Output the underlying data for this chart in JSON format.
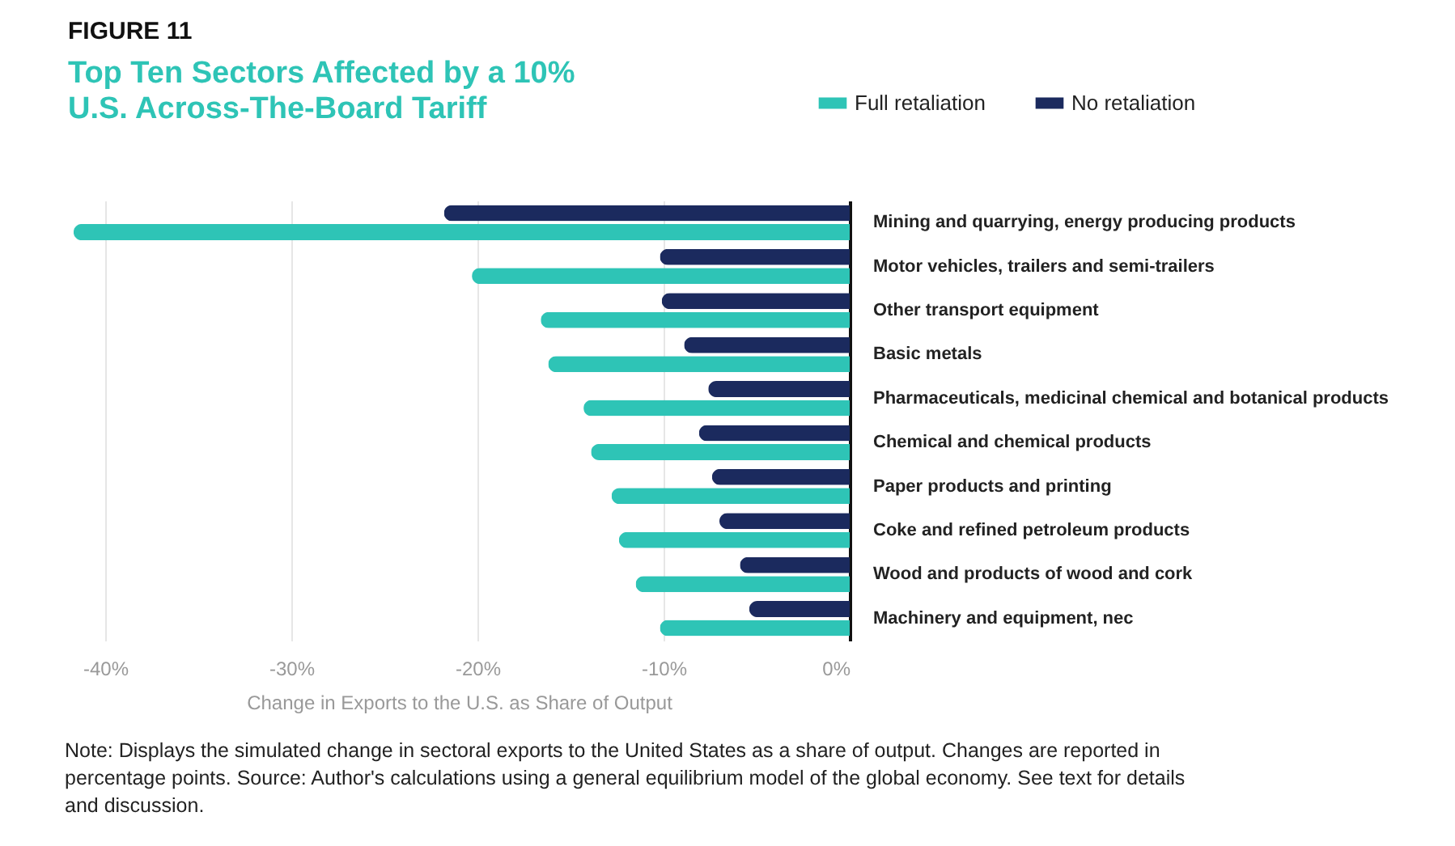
{
  "chart_data": {
    "type": "bar",
    "orientation": "horizontal",
    "title": "Top Ten Sectors Affected by a 10% U.S. Across-The-Board Tariff",
    "subtitle": "FIGURE 11",
    "xlabel": "Change in Exports to the U.S. as Share of Output",
    "categories": [
      "Mining and quarrying, energy producing products",
      "Motor vehicles, trailers and semi-trailers",
      "Other transport equipment",
      "Basic metals",
      "Pharmaceuticals, medicinal chemical and botanical products",
      "Chemical and chemical products",
      "Paper products and printing",
      "Coke and refined petroleum products",
      "Wood and products of wood and cork",
      "Machinery and equipment, nec"
    ],
    "series": [
      {
        "name": "Full retaliation",
        "color": "#2ec4b6",
        "values": [
          -41.7,
          -20.3,
          -16.6,
          -16.2,
          -14.3,
          -13.9,
          -12.8,
          -12.4,
          -11.5,
          -10.2
        ]
      },
      {
        "name": "No retaliation",
        "color": "#1b2a5e",
        "values": [
          -21.8,
          -10.2,
          -10.1,
          -8.9,
          -7.6,
          -8.1,
          -7.4,
          -7.0,
          -5.9,
          -5.4
        ]
      }
    ],
    "xlim": [
      -42,
      0
    ],
    "xticks": [
      {
        "value": -40,
        "label": "-40%"
      },
      {
        "value": -30,
        "label": "-30%"
      },
      {
        "value": -20,
        "label": "-20%"
      },
      {
        "value": -10,
        "label": "-10%"
      },
      {
        "value": 0,
        "label": "0%"
      }
    ],
    "grid": "x",
    "legend": "top right",
    "annotations": [
      "Note: Displays the simulated change in sectoral exports to the United States as a share of output. Changes are reported in percentage points. Source: Author's calculations using a general equilibrium model of the global economy. See text for details and discussion."
    ]
  }
}
